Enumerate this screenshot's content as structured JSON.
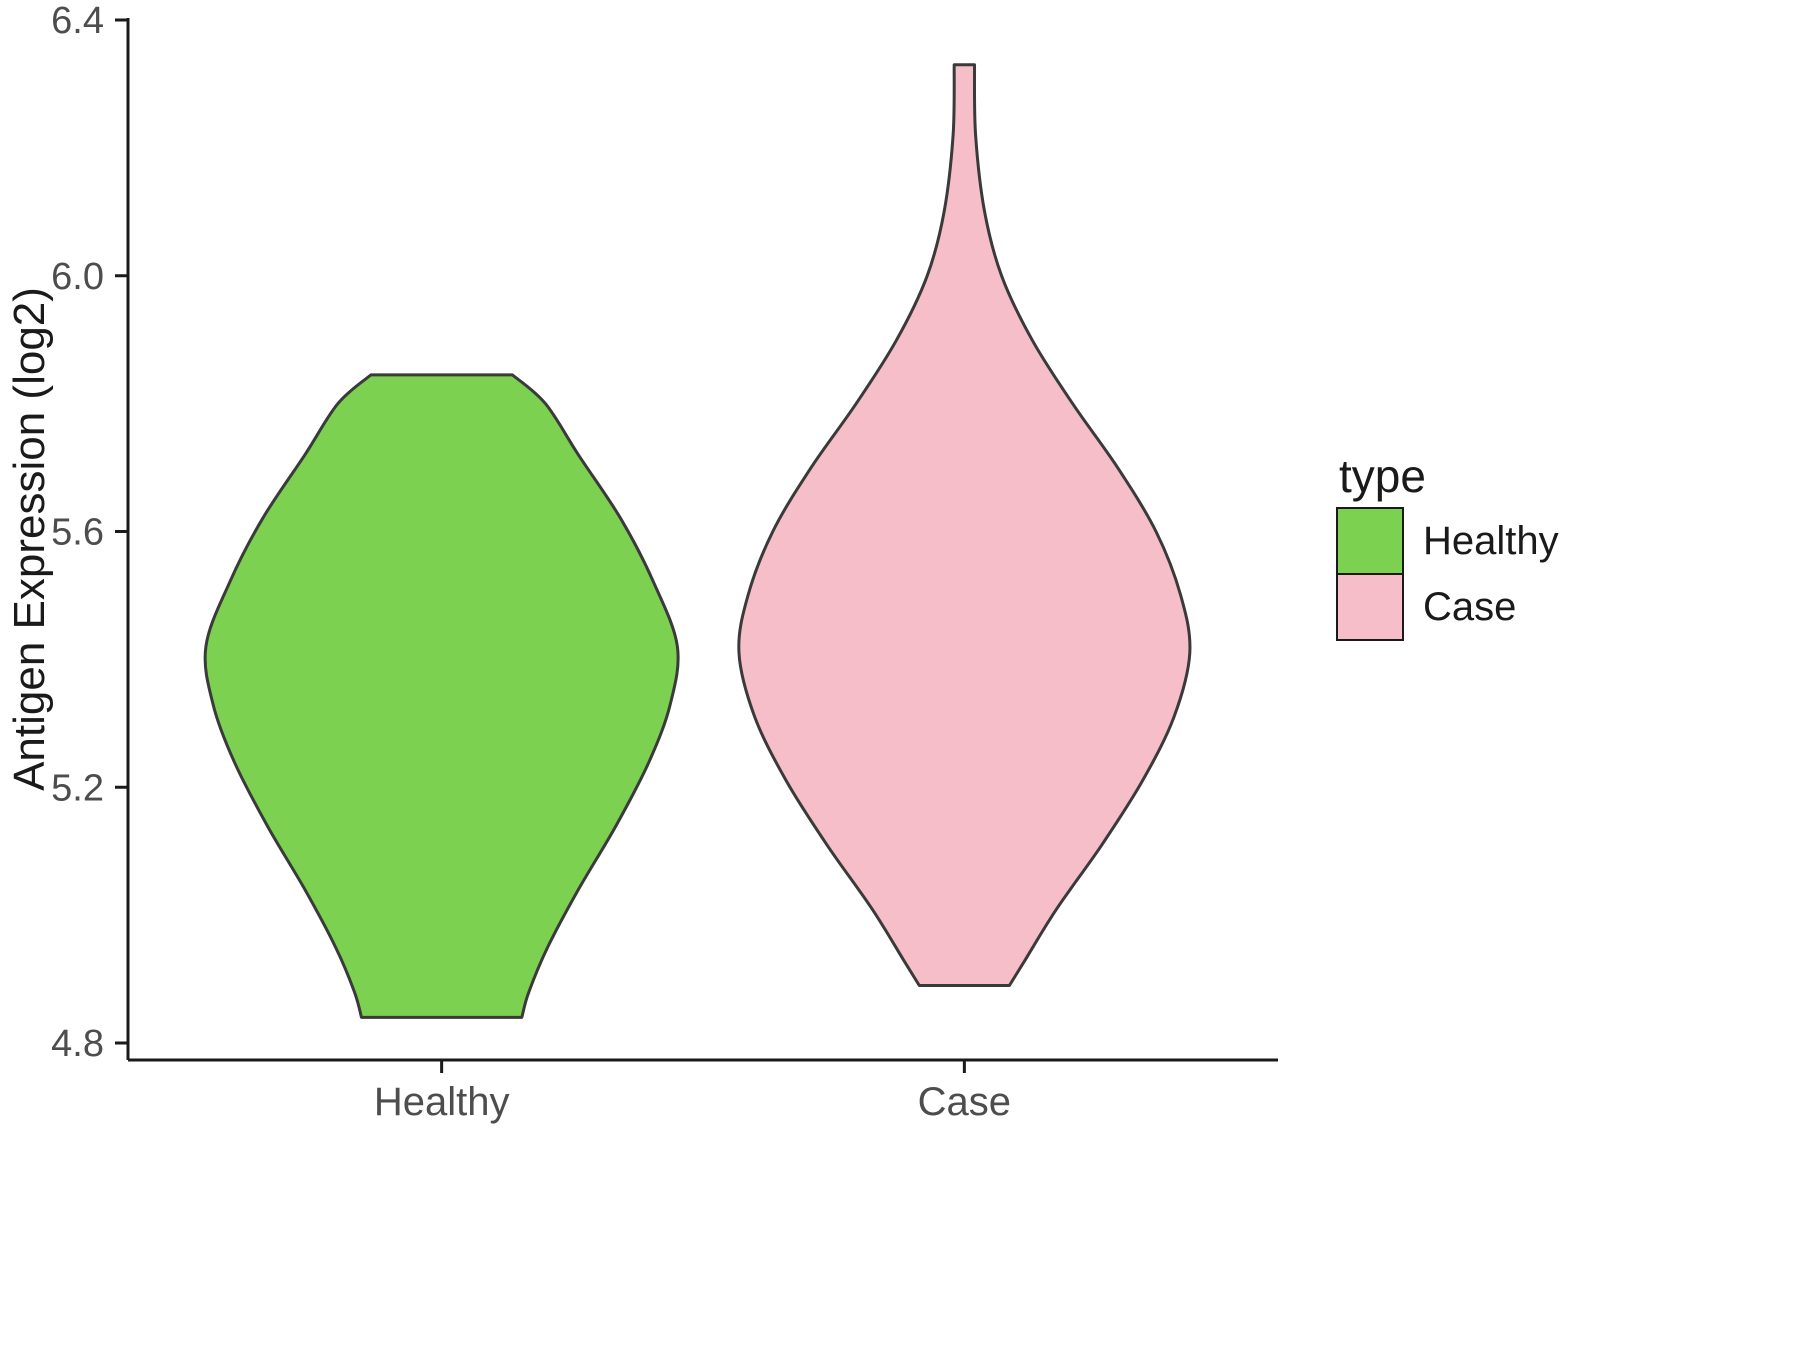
{
  "chart_data": {
    "type": "violin",
    "title": "",
    "xlabel": "",
    "ylabel": "Antigen Expression (log2)",
    "ylim": [
      4.75,
      6.42
    ],
    "yticks": [
      4.8,
      5.2,
      5.6,
      6.0,
      6.4
    ],
    "grid": false,
    "categories": [
      "Healthy",
      "Case"
    ],
    "legend": {
      "title": "type",
      "position": "right",
      "entries": [
        {
          "label": "Healthy",
          "color": "#7CD150"
        },
        {
          "label": "Case",
          "color": "#F5BEC8"
        }
      ]
    },
    "series": [
      {
        "name": "Healthy",
        "color": "#7CD150",
        "max_halfwidth_frac": 0.205,
        "profile": [
          [
            5.845,
            0.3
          ],
          [
            5.8,
            0.44
          ],
          [
            5.72,
            0.58
          ],
          [
            5.62,
            0.76
          ],
          [
            5.52,
            0.9
          ],
          [
            5.42,
            1.0
          ],
          [
            5.33,
            0.97
          ],
          [
            5.24,
            0.88
          ],
          [
            5.14,
            0.74
          ],
          [
            5.04,
            0.58
          ],
          [
            4.95,
            0.45
          ],
          [
            4.88,
            0.37
          ],
          [
            4.84,
            0.34
          ]
        ]
      },
      {
        "name": "Case",
        "color": "#F5BEC8",
        "max_halfwidth_frac": 0.196,
        "profile": [
          [
            6.33,
            0.045
          ],
          [
            6.22,
            0.05
          ],
          [
            6.1,
            0.09
          ],
          [
            6.0,
            0.165
          ],
          [
            5.9,
            0.3
          ],
          [
            5.8,
            0.48
          ],
          [
            5.7,
            0.68
          ],
          [
            5.6,
            0.85
          ],
          [
            5.5,
            0.96
          ],
          [
            5.41,
            1.0
          ],
          [
            5.31,
            0.93
          ],
          [
            5.21,
            0.79
          ],
          [
            5.11,
            0.61
          ],
          [
            5.01,
            0.41
          ],
          [
            4.93,
            0.27
          ],
          [
            4.89,
            0.2
          ]
        ]
      }
    ],
    "style": {
      "background": "#ffffff",
      "violin_stroke": "#3a3a3a",
      "axis_color": "#1a1a1a",
      "tick_label_color": "#4d4d4d",
      "axis_title_color": "#1a1a1a",
      "legend_text_color": "#1a1a1a"
    }
  }
}
